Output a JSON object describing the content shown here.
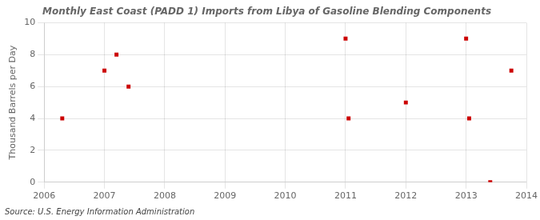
{
  "chart_data": {
    "type": "scatter",
    "title": "Monthly East Coast (PADD 1) Imports from Libya of Gasoline Blending Components",
    "ylabel": "Thousand Barrels per Day",
    "annotation": "Source: U.S. Energy Information Administration",
    "x": [
      2006.3,
      2007.0,
      2007.2,
      2007.4,
      2011.0,
      2011.05,
      2012.0,
      2013.0,
      2013.05,
      2013.4,
      2013.75
    ],
    "values": [
      4,
      7,
      8,
      6,
      9,
      4,
      5,
      9,
      4,
      0,
      7
    ],
    "color": "#cc0000",
    "marker": "square",
    "xlim": [
      2006,
      2014
    ],
    "ylim": [
      0,
      10
    ],
    "xticks": [
      2006,
      2007,
      2008,
      2009,
      2010,
      2011,
      2012,
      2013,
      2014
    ],
    "yticks": [
      0,
      2,
      4,
      6,
      8,
      10
    ],
    "grid": true
  }
}
